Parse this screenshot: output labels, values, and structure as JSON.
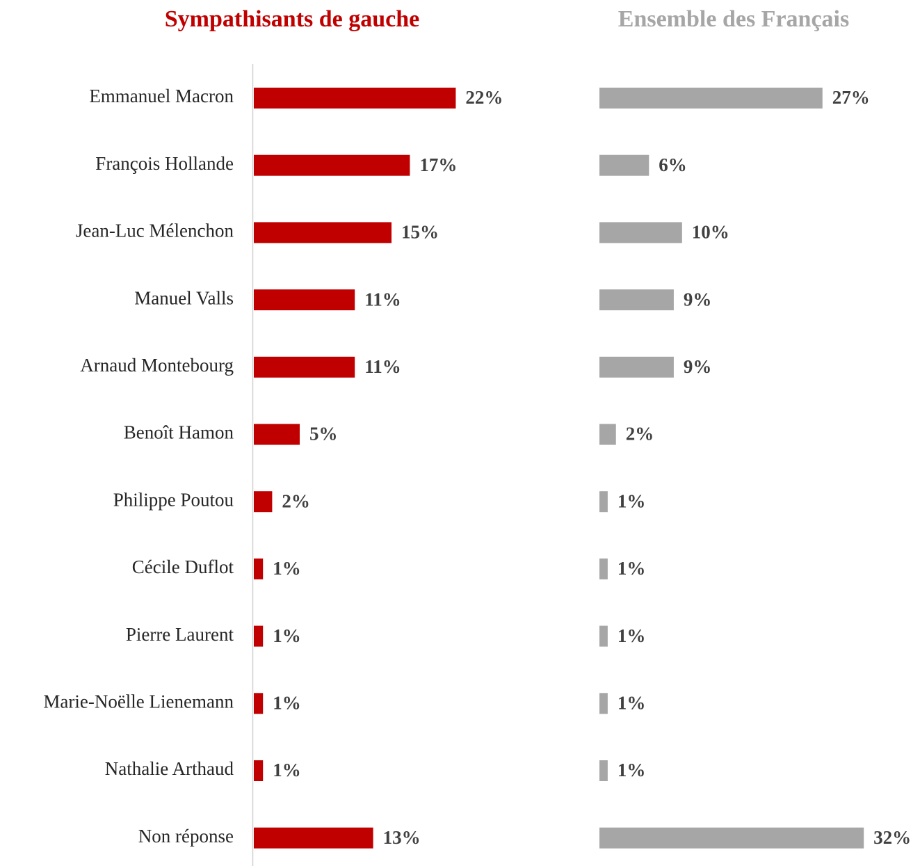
{
  "chart_data": [
    {
      "type": "bar",
      "orientation": "horizontal",
      "title": "Sympathisants de gauche",
      "color": "#c00000",
      "categories": [
        "Emmanuel Macron",
        "François Hollande",
        "Jean-Luc Mélenchon",
        "Manuel Valls",
        "Arnaud Montebourg",
        "Benoît Hamon",
        "Philippe Poutou",
        "Cécile Duflot",
        "Pierre Laurent",
        "Marie-Noëlle Lienemann",
        "Nathalie Arthaud",
        "Non réponse"
      ],
      "values": [
        22,
        17,
        15,
        11,
        11,
        5,
        2,
        1,
        1,
        1,
        1,
        13
      ],
      "value_labels": [
        "22%",
        "17%",
        "15%",
        "11%",
        "11%",
        "5%",
        "2%",
        "1%",
        "1%",
        "1%",
        "1%",
        "13%"
      ]
    },
    {
      "type": "bar",
      "orientation": "horizontal",
      "title": "Ensemble des Français",
      "color": "#a6a6a6",
      "values": [
        27,
        6,
        10,
        9,
        9,
        2,
        1,
        1,
        1,
        1,
        1,
        32
      ],
      "value_labels": [
        "27%",
        "6%",
        "10%",
        "9%",
        "9%",
        "2%",
        "1%",
        "1%",
        "1%",
        "1%",
        "1%",
        "32%"
      ]
    }
  ]
}
